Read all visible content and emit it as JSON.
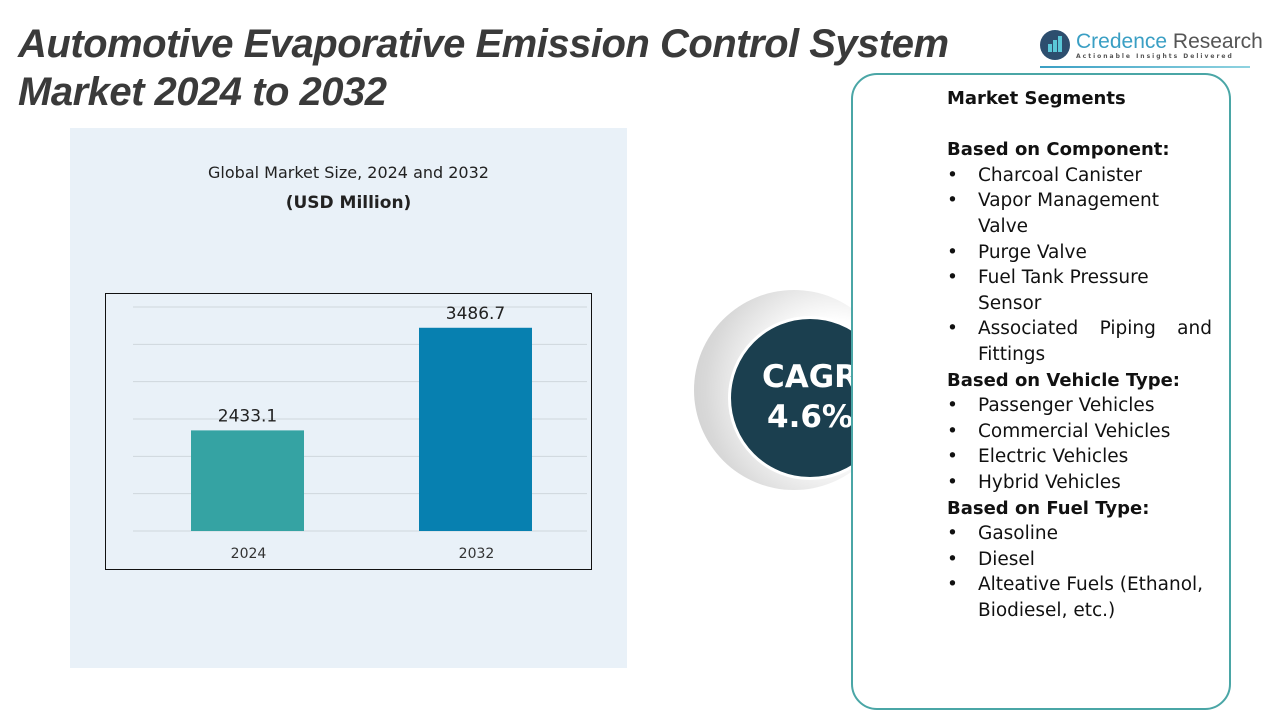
{
  "title_line1": "Automotive Evaporative Emission Control System",
  "title_line2": "Market 2024 to 2032",
  "logo": {
    "name_a": "Credence",
    "name_b": " Research",
    "tagline": "Actionable Insights Delivered"
  },
  "chart_data": {
    "type": "bar",
    "title": "Global Market Size, 2024 and 2032",
    "subtitle": "(USD Million)",
    "categories": [
      "2024",
      "2032"
    ],
    "values": [
      2433.1,
      3486.7
    ],
    "labels": [
      "2433.1",
      "3486.7"
    ],
    "colors": [
      "#35a3a3",
      "#0780b0"
    ],
    "ylim": [
      1400,
      3700
    ],
    "grid": true,
    "xlabel": "",
    "ylabel": ""
  },
  "cagr": {
    "label": "CAGR",
    "value": "4.6%"
  },
  "segments": {
    "heading": "Market Segments",
    "groups": [
      {
        "title": "Based on Component:",
        "items": [
          "Charcoal Canister",
          "Vapor Management Valve",
          "Purge Valve",
          "Fuel Tank Pressure Sensor",
          "Associated Piping and Fittings"
        ]
      },
      {
        "title": "Based on Vehicle Type:",
        "items": [
          "Passenger Vehicles",
          "Commercial Vehicles",
          "Electric Vehicles",
          "Hybrid Vehicles"
        ]
      },
      {
        "title": "Based on Fuel Type:",
        "items": [
          "Gasoline",
          "Diesel",
          "Alteative Fuels (Ethanol, Biodiesel, etc.)"
        ]
      }
    ]
  }
}
